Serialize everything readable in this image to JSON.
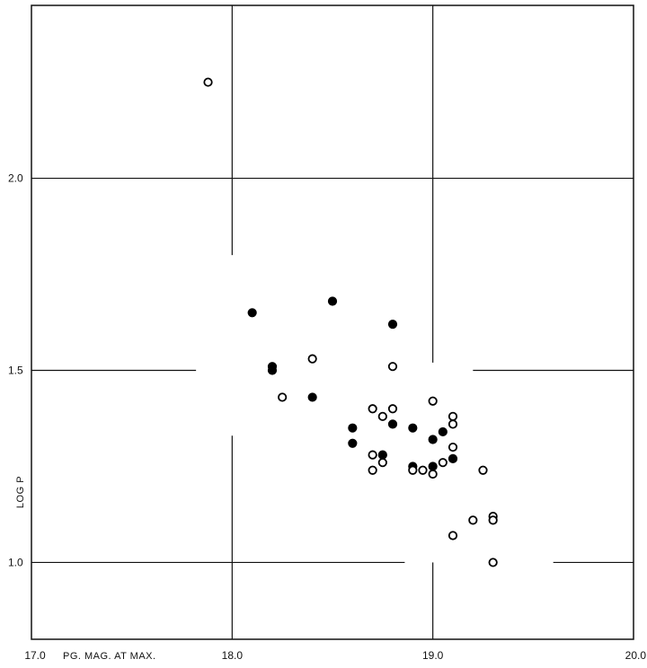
{
  "chart_data": {
    "type": "scatter",
    "title": "",
    "xlabel": "PG. MAG. AT MAX.",
    "ylabel": "LOG P",
    "xlim": [
      17.0,
      20.0
    ],
    "ylim": [
      0.8,
      2.45
    ],
    "x_ticks": [
      {
        "value": 17.0,
        "label": "17.0"
      },
      {
        "value": 18.0,
        "label": "18.0"
      },
      {
        "value": 19.0,
        "label": "19.0"
      },
      {
        "value": 20.0,
        "label": "20.0"
      }
    ],
    "y_ticks": [
      {
        "value": 1.0,
        "label": "1.0"
      },
      {
        "value": 1.5,
        "label": "1.5"
      },
      {
        "value": 2.0,
        "label": "2.0"
      }
    ],
    "grid": "partial lines at 18.0, 19.0 and 1.0, 1.5, 2.0",
    "series": [
      {
        "marker": "filled-circle",
        "color": "#000000",
        "points": [
          {
            "x": 18.1,
            "y": 1.65
          },
          {
            "x": 18.2,
            "y": 1.51
          },
          {
            "x": 18.2,
            "y": 1.5
          },
          {
            "x": 18.4,
            "y": 1.43
          },
          {
            "x": 18.5,
            "y": 1.68
          },
          {
            "x": 18.8,
            "y": 1.62
          },
          {
            "x": 18.6,
            "y": 1.35
          },
          {
            "x": 18.6,
            "y": 1.31
          },
          {
            "x": 18.75,
            "y": 1.28
          },
          {
            "x": 18.8,
            "y": 1.36
          },
          {
            "x": 18.9,
            "y": 1.35
          },
          {
            "x": 18.9,
            "y": 1.25
          },
          {
            "x": 19.0,
            "y": 1.32
          },
          {
            "x": 19.0,
            "y": 1.25
          },
          {
            "x": 19.05,
            "y": 1.34
          },
          {
            "x": 19.1,
            "y": 1.27
          }
        ]
      },
      {
        "marker": "open-circle",
        "color": "#000000",
        "points": [
          {
            "x": 17.88,
            "y": 2.25
          },
          {
            "x": 18.25,
            "y": 1.43
          },
          {
            "x": 18.4,
            "y": 1.53
          },
          {
            "x": 18.8,
            "y": 1.51
          },
          {
            "x": 18.7,
            "y": 1.4
          },
          {
            "x": 18.8,
            "y": 1.4
          },
          {
            "x": 18.75,
            "y": 1.38
          },
          {
            "x": 18.7,
            "y": 1.28
          },
          {
            "x": 18.75,
            "y": 1.26
          },
          {
            "x": 18.7,
            "y": 1.24
          },
          {
            "x": 18.9,
            "y": 1.24
          },
          {
            "x": 18.95,
            "y": 1.24
          },
          {
            "x": 19.0,
            "y": 1.42
          },
          {
            "x": 19.0,
            "y": 1.23
          },
          {
            "x": 19.05,
            "y": 1.26
          },
          {
            "x": 19.1,
            "y": 1.38
          },
          {
            "x": 19.1,
            "y": 1.36
          },
          {
            "x": 19.1,
            "y": 1.3
          },
          {
            "x": 19.25,
            "y": 1.24
          },
          {
            "x": 19.2,
            "y": 1.11
          },
          {
            "x": 19.3,
            "y": 1.12
          },
          {
            "x": 19.3,
            "y": 1.11
          },
          {
            "x": 19.1,
            "y": 1.07
          },
          {
            "x": 19.3,
            "y": 1.0
          }
        ]
      }
    ]
  }
}
